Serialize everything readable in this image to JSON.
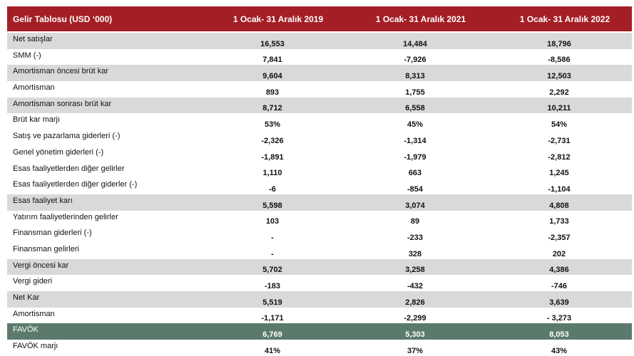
{
  "table": {
    "header": {
      "title": "Gelir Tablosu (USD ‘000)",
      "columns": [
        "1 Ocak- 31 Aralık 2019",
        "1 Ocak- 31 Aralık 2021",
        "1 Ocak- 31 Aralık 2022"
      ]
    },
    "rows": [
      {
        "label": "Net satışlar",
        "values": [
          "16,553",
          "14,484",
          "18,796"
        ],
        "style": "shade"
      },
      {
        "label": "SMM (-)",
        "values": [
          "7,841",
          "-7,926",
          "-8,586"
        ],
        "style": "plain"
      },
      {
        "label": "Amortisman öncesi brüt kar",
        "values": [
          "9,604",
          "8,313",
          "12,503"
        ],
        "style": "shade"
      },
      {
        "label": "Amortisman",
        "values": [
          "893",
          "1,755",
          "2,292"
        ],
        "style": "plain"
      },
      {
        "label": "Amortisman sonrası brüt kar",
        "values": [
          "8,712",
          "6,558",
          "10,211"
        ],
        "style": "shade"
      },
      {
        "label": "Brüt kar marjı",
        "values": [
          "53%",
          "45%",
          "54%"
        ],
        "style": "plain"
      },
      {
        "label": "Satış ve pazarlama giderleri (-)",
        "values": [
          "-2,326",
          "-1,314",
          "-2,731"
        ],
        "style": "plain"
      },
      {
        "label": "Genel yönetim giderleri (-)",
        "values": [
          "-1,891",
          "-1,979",
          "-2,812"
        ],
        "style": "plain"
      },
      {
        "label": "Esas faaliyetlerden diğer gelirler",
        "values": [
          "1,110",
          "663",
          "1,245"
        ],
        "style": "plain"
      },
      {
        "label": "Esas faaliyetlerden diğer giderler (-)",
        "values": [
          "-6",
          "-854",
          "-1,104"
        ],
        "style": "plain"
      },
      {
        "label": "Esas faaliyet karı",
        "values": [
          "5,598",
          "3,074",
          "4,808"
        ],
        "style": "shade"
      },
      {
        "label": "Yatırım faaliyetlerinden gelirler",
        "values": [
          "103",
          "89",
          "1,733"
        ],
        "style": "plain"
      },
      {
        "label": "Finansman giderleri (-)",
        "values": [
          "-",
          "-233",
          "-2,357"
        ],
        "style": "plain"
      },
      {
        "label": "Finansman gelirleri",
        "values": [
          "-",
          "328",
          "202"
        ],
        "style": "plain"
      },
      {
        "label": "Vergi öncesi kar",
        "values": [
          "5,702",
          "3,258",
          "4,386"
        ],
        "style": "shade"
      },
      {
        "label": "Vergi gideri",
        "values": [
          "-183",
          "-432",
          "-746"
        ],
        "style": "plain"
      },
      {
        "label": "Net Kar",
        "values": [
          "5,519",
          "2,826",
          "3,639"
        ],
        "style": "shade"
      },
      {
        "label": "Amortisman",
        "values": [
          "-1,171",
          "-2,299",
          "- 3,273"
        ],
        "style": "plain"
      },
      {
        "label": "FAVÖK",
        "values": [
          "6,769",
          "5,303",
          "8,053"
        ],
        "style": "highlight"
      },
      {
        "label": "FAVÖK marjı",
        "values": [
          "41%",
          "37%",
          "43%"
        ],
        "style": "plain"
      }
    ]
  },
  "colors": {
    "header_bg": "#a31f25",
    "shade_bg": "#d9d9d9",
    "highlight_bg": "#5b7a6b"
  }
}
